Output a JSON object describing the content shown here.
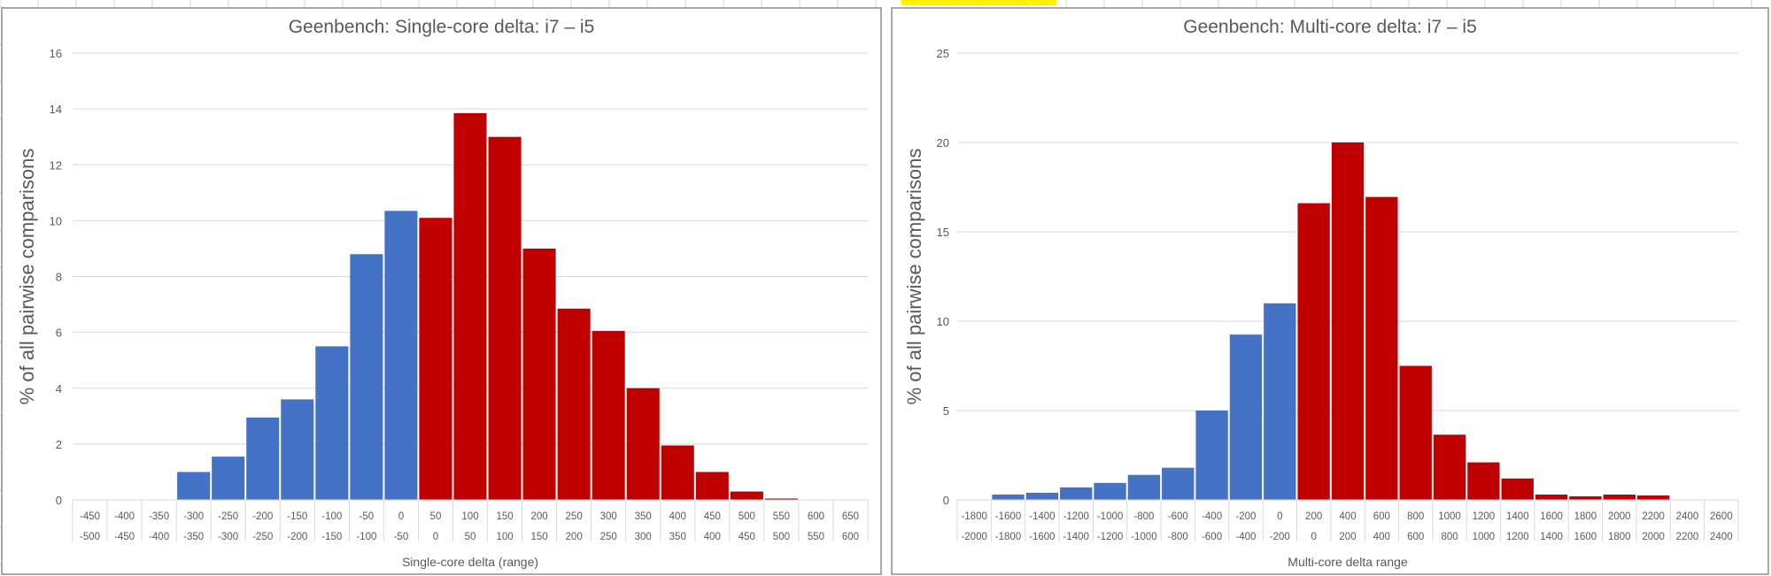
{
  "colors": {
    "negative": "#4472C4",
    "positive": "#C00000",
    "grid": "#D9D9D9",
    "highlight": "#FFF200"
  },
  "chart_data": [
    {
      "type": "bar",
      "title": "Geenbench: Single-core delta: i7 – i5",
      "xlabel": "Single-core delta (range)",
      "ylabel": "% of all pairwise comparisons",
      "ylim": [
        0,
        16
      ],
      "yticks": [
        0,
        2,
        4,
        6,
        8,
        10,
        12,
        14,
        16
      ],
      "grid": true,
      "categories_upper": [
        "-450",
        "-400",
        "-350",
        "-300",
        "-250",
        "-200",
        "-150",
        "-100",
        "-50",
        "0",
        "50",
        "100",
        "150",
        "200",
        "250",
        "300",
        "350",
        "400",
        "450",
        "500",
        "550",
        "600",
        "650"
      ],
      "categories_lower": [
        "-500",
        "-450",
        "-400",
        "-350",
        "-300",
        "-250",
        "-200",
        "-150",
        "-100",
        "-50",
        "0",
        "50",
        "100",
        "150",
        "200",
        "250",
        "300",
        "350",
        "400",
        "450",
        "500",
        "550",
        "600"
      ],
      "values": [
        0,
        0,
        0,
        1.0,
        1.55,
        2.95,
        3.6,
        5.5,
        8.8,
        10.35,
        10.1,
        13.85,
        13.0,
        9.0,
        6.85,
        6.05,
        4.0,
        1.95,
        1.0,
        0.3,
        0.05,
        0,
        0
      ],
      "negative_count": 10
    },
    {
      "type": "bar",
      "title": "Geenbench: Multi-core delta: i7 – i5",
      "xlabel": "Multi-core delta range",
      "ylabel": "% of all pairwise comparisons",
      "ylim": [
        0,
        25
      ],
      "yticks": [
        0,
        5,
        10,
        15,
        20,
        25
      ],
      "grid": true,
      "categories_upper": [
        "-1800",
        "-1600",
        "-1400",
        "-1200",
        "-1000",
        "-800",
        "-600",
        "-400",
        "-200",
        "0",
        "200",
        "400",
        "600",
        "800",
        "1000",
        "1200",
        "1400",
        "1600",
        "1800",
        "2000",
        "2200",
        "2400",
        "2600"
      ],
      "categories_lower": [
        "-2000",
        "-1800",
        "-1600",
        "-1400",
        "-1200",
        "-1000",
        "-800",
        "-600",
        "-400",
        "-200",
        "0",
        "200",
        "400",
        "600",
        "800",
        "1000",
        "1200",
        "1400",
        "1600",
        "1800",
        "2000",
        "2200",
        "2400"
      ],
      "values": [
        0,
        0.3,
        0.4,
        0.7,
        0.95,
        1.4,
        1.8,
        5.0,
        9.25,
        11.0,
        16.6,
        20.0,
        16.95,
        7.5,
        3.65,
        2.1,
        1.2,
        0.3,
        0.2,
        0.3,
        0.25,
        0,
        0
      ],
      "negative_count": 10
    }
  ]
}
